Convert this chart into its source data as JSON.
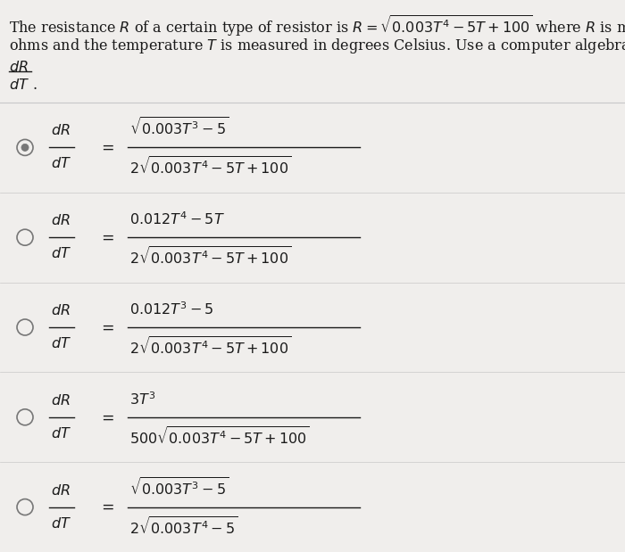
{
  "bg_color": "#f0eeec",
  "text_color": "#1a1a1a",
  "circle_color": "#777777",
  "line_color": "#bbbbbb",
  "sep_line_color": "#c8c8c8",
  "font_size": 11.5,
  "title_line1": "The resistance $R$ of a certain type of resistor is $R = \\sqrt{0.003T^4 - 5T + 100}$ where $R$ is measured in",
  "title_line2": "ohms and the temperature $T$ is measured in degrees Celsius. Use a computer algebra system to find",
  "options": [
    {
      "num": "$\\sqrt{0.003T^3-5}$",
      "den": "$2\\sqrt{0.003T^4-5T+100}$",
      "correct": true
    },
    {
      "num": "$0.012T^4-5T$",
      "den": "$2\\sqrt{0.003T^4-5T+100}$",
      "correct": false
    },
    {
      "num": "$0.012T^3-5$",
      "den": "$2\\sqrt{0.003T^4-5T+100}$",
      "correct": false
    },
    {
      "num": "$3T^3$",
      "den": "$500\\sqrt{0.003T^4-5T+100}$",
      "correct": false
    },
    {
      "num": "$\\sqrt{0.003T^3-5}$",
      "den": "$2\\sqrt{0.003T^4-5}$",
      "correct": false
    }
  ]
}
